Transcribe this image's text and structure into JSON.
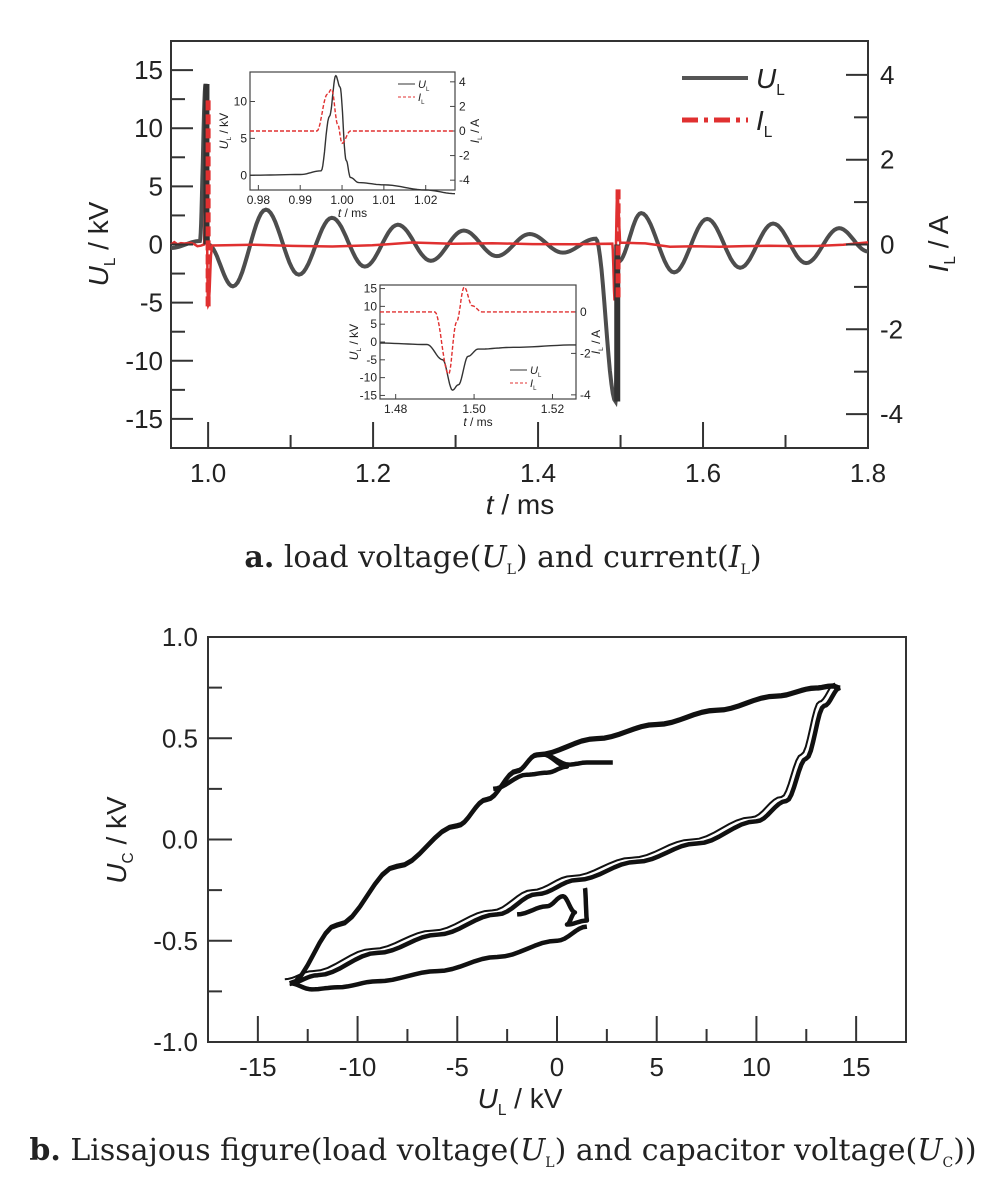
{
  "chart_data": [
    {
      "id": "a",
      "type": "line",
      "caption": {
        "prefix": "a.",
        "text_1": "load voltage(",
        "sym_1": "U",
        "sub_1": "L",
        "text_2": ") and current(",
        "sym_2": "I",
        "sub_2": "L",
        "text_3": ")"
      },
      "xlabel": {
        "sym": "t",
        "unit": " / ms"
      },
      "ylabel_left": {
        "sym": "U",
        "sub": "L",
        "unit": " / kV"
      },
      "ylabel_right": {
        "sym": "I",
        "sub": "L",
        "unit": " / A"
      },
      "xlim": [
        0.955,
        1.8
      ],
      "ylim_left": [
        -17.5,
        17.5
      ],
      "ylim_right": [
        -4.8,
        4.8
      ],
      "xticks": [
        "1.0",
        "1.2",
        "1.4",
        "1.6",
        "1.8"
      ],
      "xtick_values": [
        1.0,
        1.2,
        1.4,
        1.6,
        1.8
      ],
      "yticks_left": [
        "15",
        "10",
        "5",
        "0",
        "-5",
        "-10",
        "-15"
      ],
      "ytick_values_left": [
        15,
        10,
        5,
        0,
        -5,
        -10,
        -15
      ],
      "yticks_right": [
        "4",
        "2",
        "0",
        "-2",
        "-4"
      ],
      "ytick_values_right": [
        4,
        2,
        0,
        -2,
        -4
      ],
      "legend": {
        "placement": "top-right",
        "entries": [
          {
            "sym": "U",
            "sub": "L",
            "color": "#555555",
            "style": "solid"
          },
          {
            "sym": "I",
            "sub": "L",
            "color": "#e03030",
            "style": "dashed"
          }
        ]
      },
      "series": [
        {
          "key": "UL",
          "color": "#4d4d4d",
          "description_points": [
            [
              0.955,
              -0.3
            ],
            [
              0.99,
              0.3
            ],
            [
              0.997,
              13.8
            ],
            [
              1.0,
              0.0
            ],
            [
              1.03,
              -3.6
            ],
            [
              1.07,
              3.0
            ],
            [
              1.11,
              -2.6
            ],
            [
              1.15,
              2.3
            ],
            [
              1.19,
              -1.9
            ],
            [
              1.23,
              1.7
            ],
            [
              1.27,
              -1.4
            ],
            [
              1.31,
              1.2
            ],
            [
              1.35,
              -1.0
            ],
            [
              1.39,
              0.9
            ],
            [
              1.43,
              -0.7
            ],
            [
              1.47,
              0.5
            ],
            [
              1.494,
              -13.5
            ],
            [
              1.497,
              -1.5
            ],
            [
              1.525,
              2.7
            ],
            [
              1.565,
              -2.4
            ],
            [
              1.605,
              2.2
            ],
            [
              1.645,
              -2.0
            ],
            [
              1.685,
              1.8
            ],
            [
              1.725,
              -1.6
            ],
            [
              1.765,
              1.4
            ],
            [
              1.8,
              -0.6
            ]
          ]
        },
        {
          "key": "IL",
          "color": "#e03030",
          "description_points": [
            [
              0.955,
              0.0
            ],
            [
              0.995,
              0.0
            ],
            [
              0.997,
              3.4
            ],
            [
              1.0,
              -1.5
            ],
            [
              1.005,
              0.0
            ],
            [
              1.49,
              0.0
            ],
            [
              1.493,
              -1.3
            ],
            [
              1.496,
              1.3
            ],
            [
              1.5,
              0.0
            ],
            [
              1.8,
              0.0
            ]
          ]
        }
      ],
      "insets": [
        {
          "id": "inset-1",
          "xlim": [
            0.978,
            1.027
          ],
          "xticks": [
            "0.98",
            "0.99",
            "1.00",
            "1.01",
            "1.02"
          ],
          "xtick_values": [
            0.98,
            0.99,
            1.0,
            1.01,
            1.02
          ],
          "yticks_left": [
            "10",
            "5",
            "0"
          ],
          "ytick_values_left": [
            10,
            5,
            0
          ],
          "ylim_left": [
            -2,
            14
          ],
          "yticks_right": [
            "4",
            "2",
            "0",
            "-2",
            "-4"
          ],
          "ytick_values_right": [
            4,
            2,
            0,
            -2,
            -4
          ],
          "ylim_right": [
            -4.8,
            4.8
          ],
          "xlabel": {
            "sym": "t",
            "unit": " / ms"
          },
          "ylabel_left": {
            "sym": "U",
            "sub": "L",
            "unit": " / kV"
          },
          "ylabel_right": {
            "sym": "I",
            "sub": "L",
            "unit": " / A"
          },
          "legend": [
            {
              "sym": "U",
              "sub": "L"
            },
            {
              "sym": "I",
              "sub": "L"
            }
          ],
          "UL": [
            [
              0.978,
              0.0
            ],
            [
              0.99,
              0.1
            ],
            [
              0.995,
              0.6
            ],
            [
              0.997,
              8.0
            ],
            [
              0.9985,
              13.5
            ],
            [
              0.9995,
              12.0
            ],
            [
              1.001,
              2.0
            ],
            [
              1.002,
              -0.3
            ],
            [
              1.004,
              -1.0
            ],
            [
              1.01,
              -1.3
            ],
            [
              1.02,
              -2.0
            ],
            [
              1.027,
              -2.5
            ]
          ],
          "IL": [
            [
              0.978,
              0.0
            ],
            [
              0.994,
              0.0
            ],
            [
              0.9965,
              3.0
            ],
            [
              0.9975,
              3.4
            ],
            [
              0.999,
              0.5
            ],
            [
              1.0,
              -1.0
            ],
            [
              1.002,
              0.0
            ],
            [
              1.027,
              0.0
            ]
          ]
        },
        {
          "id": "inset-2",
          "xlim": [
            1.476,
            1.526
          ],
          "xticks": [
            "1.48",
            "1.50",
            "1.52"
          ],
          "xtick_values": [
            1.48,
            1.5,
            1.52
          ],
          "yticks_left": [
            "15",
            "10",
            "5",
            "0",
            "-5",
            "-10",
            "-15"
          ],
          "ytick_values_left": [
            15,
            10,
            5,
            0,
            -5,
            -10,
            -15
          ],
          "ylim_left": [
            -16,
            16
          ],
          "yticks_right": [
            "0",
            "-2",
            "-4"
          ],
          "ytick_values_right": [
            0,
            -2,
            -4
          ],
          "ylim_right": [
            -4.2,
            1.3
          ],
          "xlabel": {
            "sym": "t",
            "unit": " / ms"
          },
          "ylabel_left": {
            "sym": "U",
            "sub": "L",
            "unit": " / kV"
          },
          "ylabel_right": {
            "sym": "I",
            "sub": "L",
            "unit": " / A"
          },
          "legend": [
            {
              "sym": "U",
              "sub": "L"
            },
            {
              "sym": "I",
              "sub": "L"
            }
          ],
          "UL": [
            [
              1.476,
              -0.3
            ],
            [
              1.488,
              -0.7
            ],
            [
              1.492,
              -5.0
            ],
            [
              1.4945,
              -13.5
            ],
            [
              1.496,
              -12.0
            ],
            [
              1.4985,
              -4.0
            ],
            [
              1.501,
              -2.0
            ],
            [
              1.51,
              -1.5
            ],
            [
              1.526,
              -0.8
            ]
          ],
          "IL": [
            [
              1.476,
              0.0
            ],
            [
              1.49,
              0.0
            ],
            [
              1.4935,
              -3.0
            ],
            [
              1.4955,
              -0.5
            ],
            [
              1.4975,
              1.2
            ],
            [
              1.4995,
              0.3
            ],
            [
              1.502,
              0.0
            ],
            [
              1.526,
              0.0
            ]
          ]
        }
      ]
    },
    {
      "id": "b",
      "type": "line",
      "caption": {
        "prefix": "b.",
        "text_1": "Lissajous figure(load voltage(",
        "sym_1": "U",
        "sub_1": "L",
        "text_2": ") and capacitor voltage(",
        "sym_2": "U",
        "sub_2": "C",
        "text_3": "))"
      },
      "xlabel": {
        "sym": "U",
        "sub": "L",
        "unit": " / kV"
      },
      "ylabel": {
        "sym": "U",
        "sub": "C",
        "unit": " / kV"
      },
      "xlim": [
        -17.5,
        17.5
      ],
      "ylim": [
        -1.0,
        1.0
      ],
      "xticks": [
        "-15",
        "-10",
        "-5",
        "0",
        "5",
        "10",
        "15"
      ],
      "xtick_values": [
        -15,
        -10,
        -5,
        0,
        5,
        10,
        15
      ],
      "yticks": [
        "1.0",
        "0.5",
        "0.0",
        "-0.5",
        "-1.0"
      ],
      "ytick_values": [
        1.0,
        0.5,
        0.0,
        -0.5,
        -1.0
      ],
      "series": [
        {
          "key": "lissajous",
          "color": "#111111",
          "upper_branch": [
            [
              -13.4,
              -0.71
            ],
            [
              -11.0,
              -0.42
            ],
            [
              -8.0,
              -0.13
            ],
            [
              -5.0,
              0.07
            ],
            [
              -3.5,
              0.2
            ],
            [
              -2.0,
              0.34
            ],
            [
              -1.0,
              0.42
            ],
            [
              2.0,
              0.5
            ],
            [
              5.0,
              0.57
            ],
            [
              8.0,
              0.64
            ],
            [
              11.0,
              0.71
            ],
            [
              13.0,
              0.75
            ],
            [
              13.8,
              0.76
            ],
            [
              14.2,
              0.75
            ]
          ],
          "lower_branch": [
            [
              14.2,
              0.75
            ],
            [
              13.4,
              0.66
            ],
            [
              12.5,
              0.4
            ],
            [
              11.5,
              0.19
            ],
            [
              10.0,
              0.09
            ],
            [
              7.0,
              -0.02
            ],
            [
              4.0,
              -0.11
            ],
            [
              1.0,
              -0.2
            ],
            [
              -1.0,
              -0.27
            ],
            [
              -3.0,
              -0.37
            ],
            [
              -6.0,
              -0.47
            ],
            [
              -9.0,
              -0.56
            ],
            [
              -12.0,
              -0.67
            ],
            [
              -13.4,
              -0.71
            ]
          ],
          "bottom_arc": [
            [
              -13.4,
              -0.71
            ],
            [
              -12.3,
              -0.74
            ],
            [
              -11.0,
              -0.73
            ],
            [
              -9.0,
              -0.7
            ],
            [
              -6.0,
              -0.65
            ],
            [
              -3.0,
              -0.58
            ],
            [
              0.0,
              -0.5
            ],
            [
              1.5,
              -0.43
            ]
          ],
          "upper_squiggle": [
            [
              -3.2,
              0.25
            ],
            [
              -1.5,
              0.32
            ],
            [
              -0.5,
              0.33
            ],
            [
              0.5,
              0.36
            ],
            [
              -0.7,
              0.42
            ],
            [
              0.6,
              0.37
            ],
            [
              1.5,
              0.38
            ],
            [
              2.8,
              0.38
            ]
          ],
          "lower_squiggle": [
            [
              -2.0,
              -0.37
            ],
            [
              -0.5,
              -0.33
            ],
            [
              0.3,
              -0.28
            ],
            [
              0.9,
              -0.36
            ],
            [
              0.5,
              -0.42
            ],
            [
              1.5,
              -0.4
            ],
            [
              1.4,
              -0.24
            ]
          ]
        }
      ]
    }
  ]
}
